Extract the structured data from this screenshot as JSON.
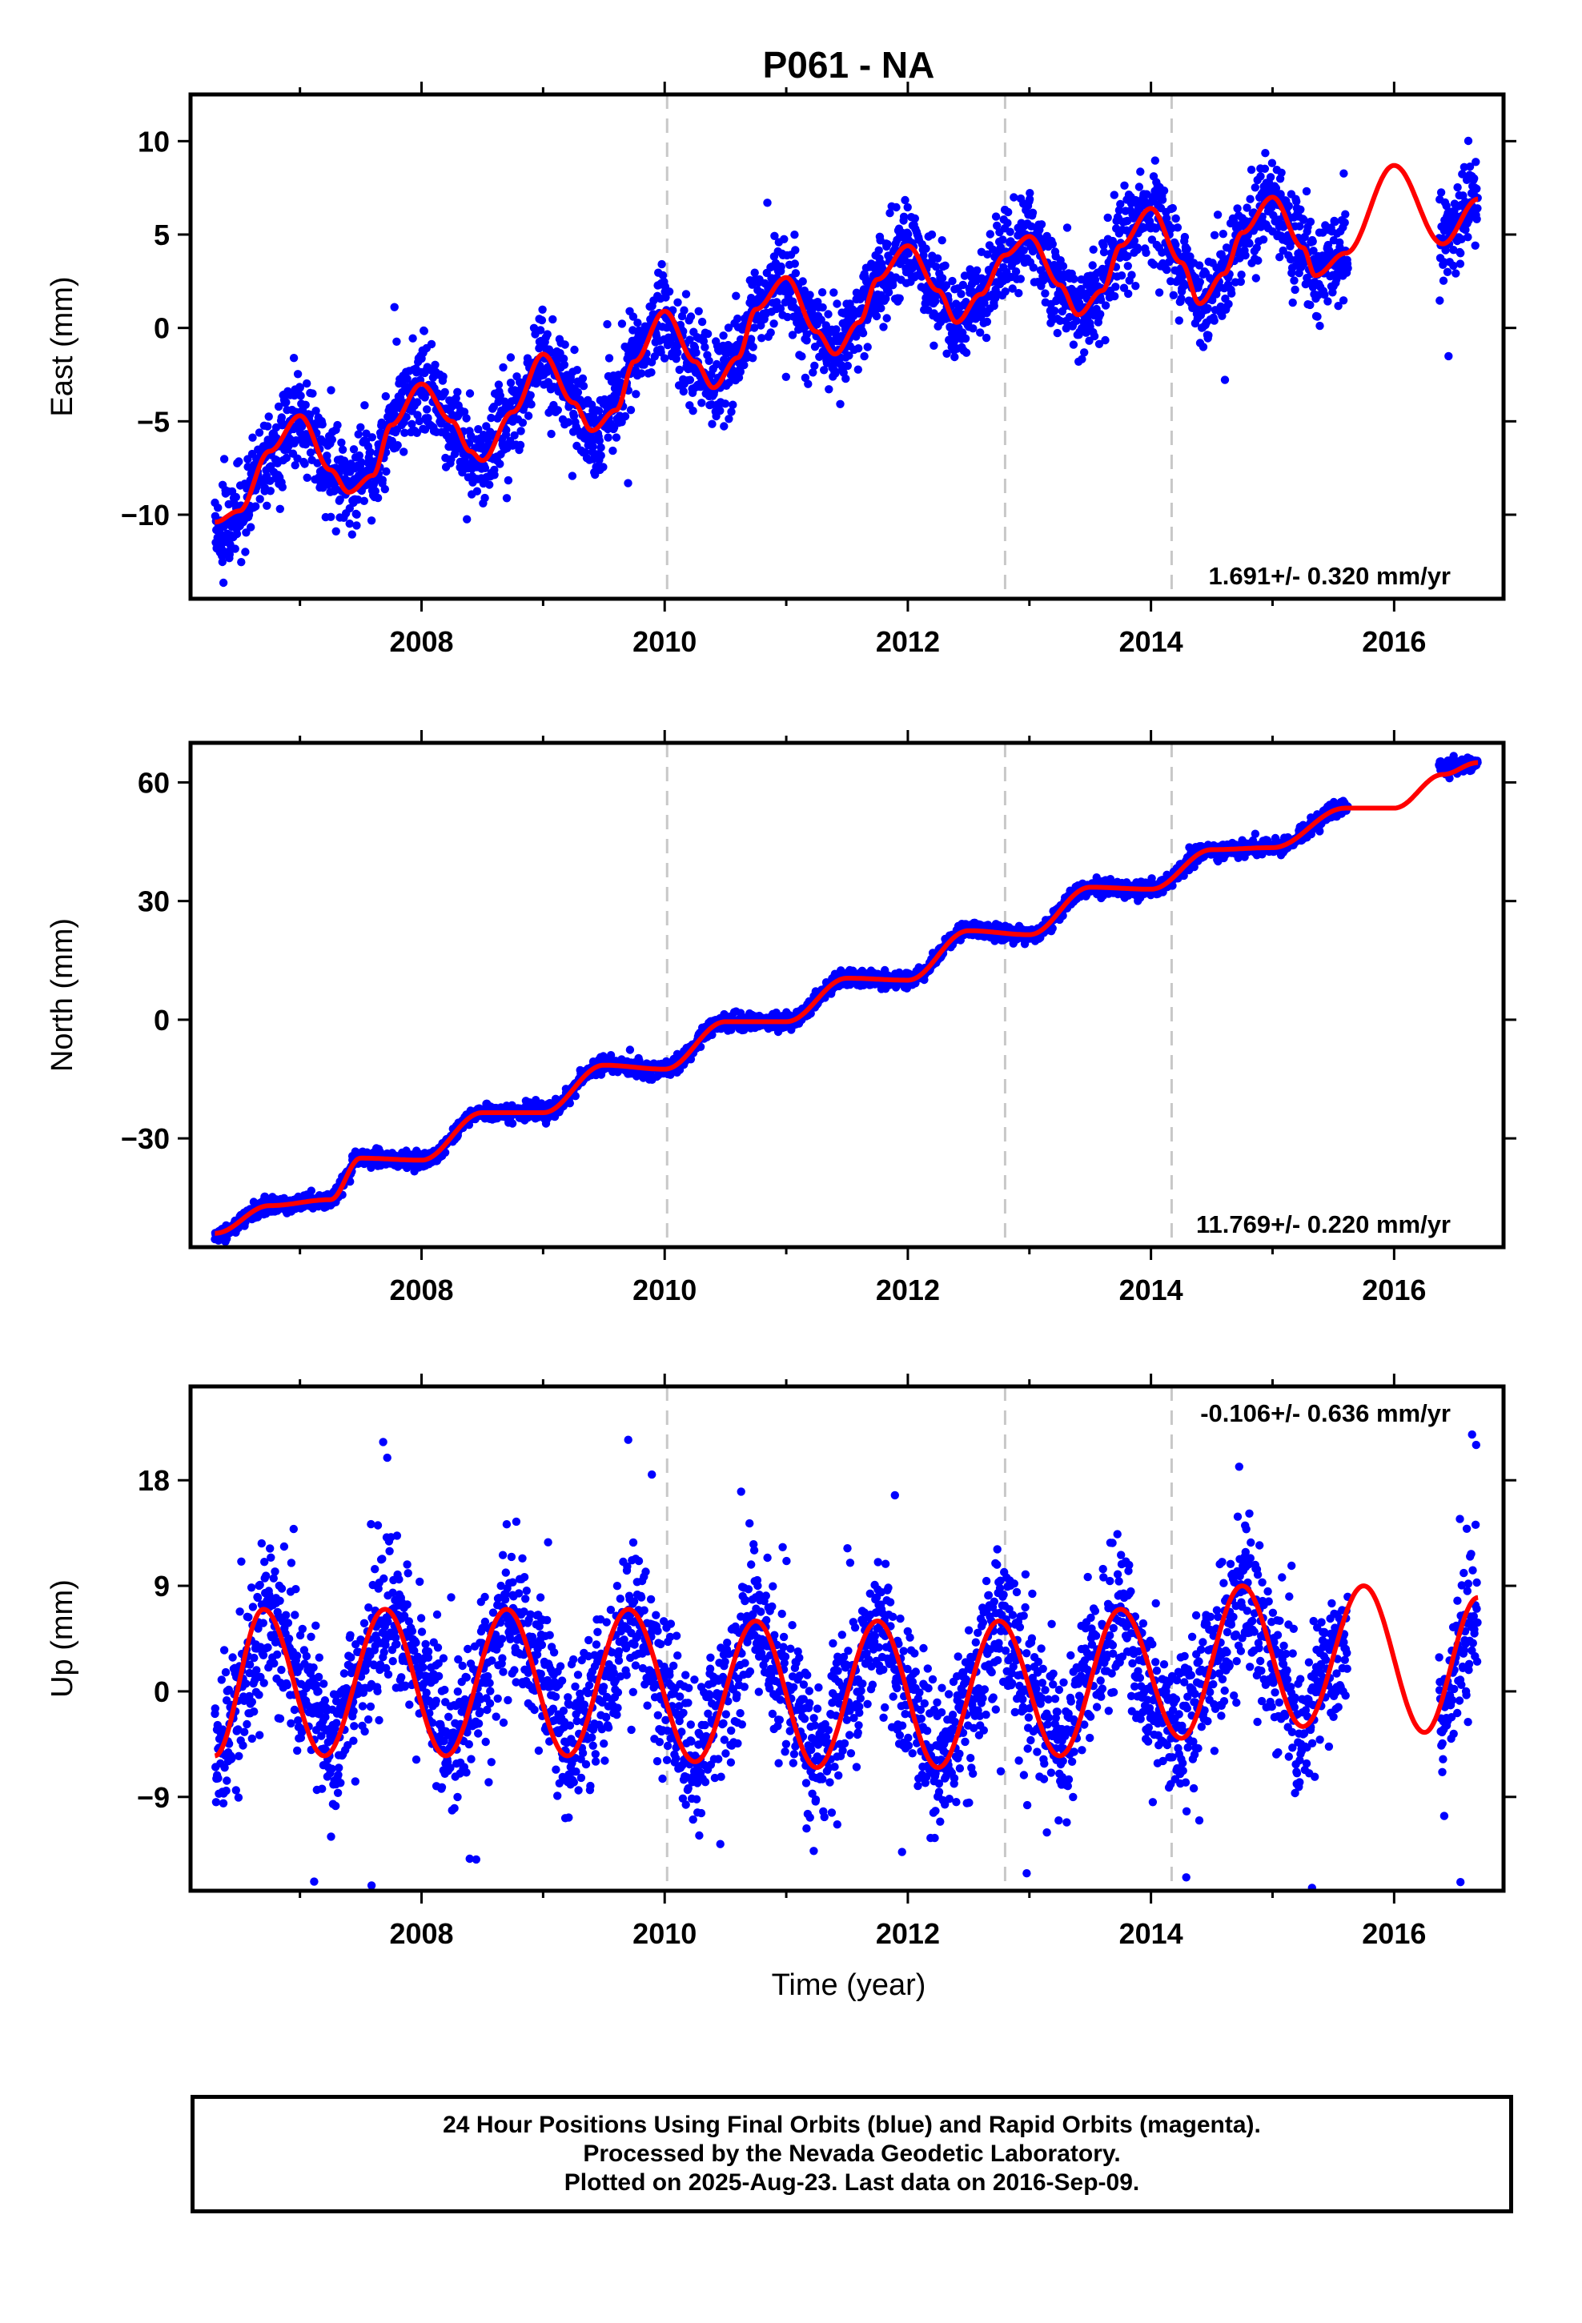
{
  "title": "P061 - NA",
  "xlabel": "Time (year)",
  "colors": {
    "final_orbits": "#0000ff",
    "model": "#ff0000",
    "event_lines": "#c8c8c8",
    "frame": "#000000"
  },
  "caption": {
    "line1": "24 Hour Positions Using Final Orbits (blue) and Rapid Orbits (magenta).",
    "line2": "Processed by the Nevada Geodetic Laboratory.",
    "line3": "Plotted on 2025-Aug-23. Last data on 2016-Sep-09."
  },
  "chart_data": [
    {
      "type": "scatter",
      "panel": "east",
      "ylabel": "East (mm)",
      "rate_label": "1.691+/- 0.320 mm/yr",
      "rate_label_position": "bottom-right",
      "xlim": [
        2006.1,
        2016.9
      ],
      "ylim": [
        -14.5,
        12.5
      ],
      "x_ticks": [
        2008,
        2010,
        2012,
        2014,
        2016
      ],
      "y_ticks": [
        -10,
        -5,
        0,
        5,
        10
      ],
      "y_tick_labels": [
        "−10",
        "−5",
        "0",
        "5",
        "10"
      ],
      "event_lines": [
        2010.02,
        2012.8,
        2014.17
      ],
      "data_span": [
        2006.3,
        2016.69
      ],
      "gaps": [
        [
          2015.62,
          2016.37
        ]
      ],
      "series": [
        {
          "name": "Final Orbits (blue)",
          "kind": "points",
          "x": [
            2006.3,
            2006.5,
            2006.75,
            2007.0,
            2007.25,
            2007.4,
            2007.6,
            2007.75,
            2008.0,
            2008.25,
            2008.4,
            2008.5,
            2008.75,
            2009.0,
            2009.25,
            2009.4,
            2009.6,
            2009.75,
            2010.0,
            2010.25,
            2010.4,
            2010.6,
            2010.75,
            2011.0,
            2011.25,
            2011.4,
            2011.6,
            2011.75,
            2012.0,
            2012.25,
            2012.4,
            2012.6,
            2012.8,
            2013.0,
            2013.25,
            2013.4,
            2013.6,
            2013.75,
            2014.0,
            2014.25,
            2014.4,
            2014.6,
            2014.75,
            2015.0,
            2015.25,
            2015.35,
            2015.6,
            2016.4,
            2016.55,
            2016.69
          ],
          "y": [
            -10.6,
            -9.8,
            -6.6,
            -4.7,
            -7.6,
            -8.7,
            -7.9,
            -5.2,
            -3.0,
            -5.0,
            -6.6,
            -7.0,
            -4.5,
            -1.5,
            -4.0,
            -5.5,
            -4.4,
            -1.8,
            0.9,
            -1.8,
            -3.1,
            -1.6,
            1.0,
            2.6,
            -0.2,
            -1.4,
            0.3,
            2.6,
            4.4,
            2.0,
            0.3,
            1.8,
            3.9,
            4.9,
            2.3,
            0.7,
            2.0,
            4.4,
            6.4,
            3.5,
            1.3,
            2.9,
            5.1,
            7.0,
            4.3,
            3.0,
            4.0,
            4.5,
            5.5,
            6.9
          ]
        },
        {
          "name": "",
          "kind": "model",
          "x": [
            2006.3,
            2006.5,
            2006.75,
            2007.0,
            2007.25,
            2007.4,
            2007.6,
            2007.75,
            2008.0,
            2008.25,
            2008.4,
            2008.5,
            2008.75,
            2009.0,
            2009.25,
            2009.4,
            2009.6,
            2009.75,
            2010.0,
            2010.25,
            2010.4,
            2010.6,
            2010.75,
            2011.0,
            2011.25,
            2011.4,
            2011.6,
            2011.75,
            2012.0,
            2012.25,
            2012.4,
            2012.6,
            2012.8,
            2013.0,
            2013.25,
            2013.4,
            2013.6,
            2013.75,
            2014.0,
            2014.25,
            2014.4,
            2014.6,
            2014.75,
            2015.0,
            2015.25,
            2015.35,
            2015.6,
            2016.0,
            2016.4,
            2016.69
          ],
          "y": [
            -10.4,
            -9.8,
            -6.6,
            -4.7,
            -7.6,
            -8.8,
            -7.9,
            -5.2,
            -3.0,
            -5.0,
            -6.6,
            -7.1,
            -4.5,
            -1.4,
            -4.0,
            -5.5,
            -4.4,
            -1.8,
            0.9,
            -1.8,
            -3.2,
            -1.6,
            1.0,
            2.7,
            -0.2,
            -1.4,
            0.3,
            2.6,
            4.4,
            2.0,
            0.3,
            1.8,
            3.9,
            4.9,
            2.3,
            0.7,
            2.0,
            4.4,
            6.4,
            3.5,
            1.3,
            2.9,
            5.1,
            7.0,
            4.3,
            2.8,
            4.0,
            8.7,
            4.5,
            6.9
          ]
        }
      ]
    },
    {
      "type": "scatter",
      "panel": "north",
      "ylabel": "North (mm)",
      "rate_label": "11.769+/- 0.220 mm/yr",
      "rate_label_position": "bottom-right",
      "xlim": [
        2006.1,
        2016.9
      ],
      "ylim": [
        -57.5,
        70.0
      ],
      "x_ticks": [
        2008,
        2010,
        2012,
        2014,
        2016
      ],
      "y_ticks": [
        -30,
        0,
        30,
        60
      ],
      "y_tick_labels": [
        "−30",
        "0",
        "30",
        "60"
      ],
      "event_lines": [
        2010.02,
        2012.8,
        2014.17
      ],
      "data_span": [
        2006.3,
        2016.69
      ],
      "gaps": [
        [
          2015.62,
          2016.37
        ]
      ],
      "series": [
        {
          "name": "Final Orbits (blue)",
          "kind": "points",
          "x": [
            2006.3,
            2006.75,
            2007.25,
            2007.5,
            2008.0,
            2008.5,
            2009.0,
            2009.5,
            2010.0,
            2010.5,
            2011.0,
            2011.5,
            2012.0,
            2012.5,
            2013.0,
            2013.5,
            2014.0,
            2014.5,
            2015.0,
            2015.6,
            2016.4,
            2016.69
          ],
          "y": [
            -54.5,
            -47.0,
            -45.5,
            -35.0,
            -35.5,
            -23.5,
            -23.5,
            -11.5,
            -12.5,
            -0.5,
            -0.5,
            10.5,
            10.0,
            22.5,
            21.5,
            33.5,
            33.0,
            43.0,
            43.5,
            53.5,
            64.0,
            65.0
          ]
        },
        {
          "name": "",
          "kind": "model",
          "x": [
            2006.3,
            2006.75,
            2007.25,
            2007.5,
            2008.0,
            2008.5,
            2009.0,
            2009.5,
            2010.0,
            2010.5,
            2011.0,
            2011.5,
            2012.0,
            2012.5,
            2013.0,
            2013.5,
            2014.0,
            2014.5,
            2015.0,
            2015.6,
            2016.0,
            2016.4,
            2016.69
          ],
          "y": [
            -54.0,
            -47.0,
            -45.5,
            -35.0,
            -35.5,
            -23.5,
            -23.5,
            -11.5,
            -12.5,
            -0.5,
            -0.5,
            10.5,
            10.0,
            22.5,
            21.5,
            33.5,
            33.0,
            43.0,
            43.5,
            53.5,
            53.5,
            62.0,
            65.0
          ]
        }
      ]
    },
    {
      "type": "scatter",
      "panel": "up",
      "ylabel": "Up (mm)",
      "rate_label": "-0.106+/- 0.636 mm/yr",
      "rate_label_position": "top-right",
      "xlim": [
        2006.1,
        2016.9
      ],
      "ylim": [
        -17.0,
        26.0
      ],
      "x_ticks": [
        2008,
        2010,
        2012,
        2014,
        2016
      ],
      "y_ticks": [
        -9,
        0,
        9,
        18
      ],
      "y_tick_labels": [
        "−9",
        "0",
        "9",
        "18"
      ],
      "event_lines": [
        2010.02,
        2012.8,
        2014.17
      ],
      "data_span": [
        2006.3,
        2016.69
      ],
      "gaps": [
        [
          2015.62,
          2016.37
        ]
      ],
      "series": [
        {
          "name": "Final Orbits (blue)",
          "kind": "points",
          "x": [
            2006.3,
            2006.55,
            2006.75,
            2007.0,
            2007.25,
            2007.5,
            2007.75,
            2008.0,
            2008.25,
            2008.5,
            2008.75,
            2009.0,
            2009.25,
            2009.5,
            2009.75,
            2010.0,
            2010.25,
            2010.5,
            2010.75,
            2011.0,
            2011.25,
            2011.5,
            2011.75,
            2012.0,
            2012.25,
            2012.5,
            2012.75,
            2013.0,
            2013.25,
            2013.5,
            2013.75,
            2014.0,
            2014.25,
            2014.5,
            2014.75,
            2015.0,
            2015.25,
            2015.5,
            2016.4,
            2016.55,
            2016.69
          ],
          "y": [
            -5.0,
            1.0,
            7.0,
            1.0,
            -5.0,
            1.0,
            7.0,
            1.0,
            -5.0,
            1.0,
            7.0,
            1.0,
            -5.0,
            1.0,
            7.0,
            0.0,
            -6.0,
            0.0,
            6.0,
            0.0,
            -6.0,
            0.0,
            6.0,
            0.0,
            -6.5,
            0.0,
            6.0,
            0.0,
            -5.0,
            1.0,
            7.0,
            0.0,
            -3.5,
            2.0,
            9.0,
            3.0,
            -3.5,
            3.0,
            -2.5,
            3.0,
            8.0
          ]
        },
        {
          "name": "",
          "kind": "model",
          "x": [
            2006.3,
            2006.7,
            2007.2,
            2007.7,
            2008.2,
            2008.7,
            2009.2,
            2009.7,
            2010.25,
            2010.75,
            2011.25,
            2011.75,
            2012.25,
            2012.75,
            2013.25,
            2013.75,
            2014.25,
            2014.75,
            2015.25,
            2015.75,
            2016.25,
            2016.69
          ],
          "y": [
            -5.5,
            7.0,
            -5.5,
            7.0,
            -5.5,
            7.0,
            -5.5,
            7.0,
            -6.0,
            6.0,
            -6.5,
            6.0,
            -6.5,
            6.0,
            -5.5,
            7.0,
            -4.0,
            9.0,
            -3.0,
            9.0,
            -3.5,
            8.0
          ]
        }
      ]
    }
  ]
}
